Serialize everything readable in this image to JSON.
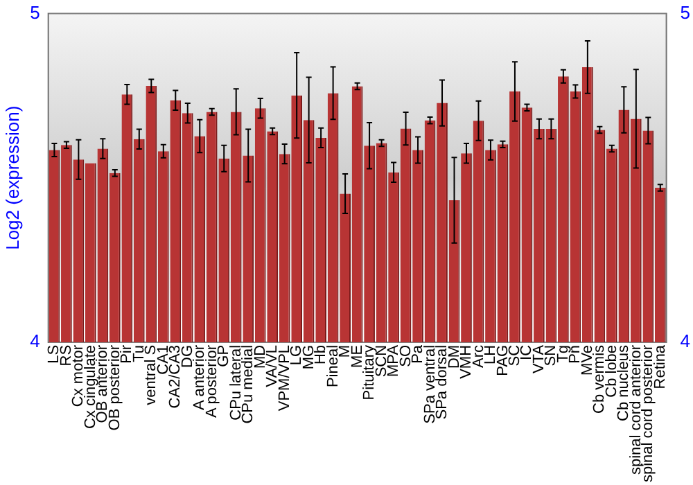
{
  "chart_data": {
    "type": "bar",
    "ylabel": "Log2 (expression)",
    "categories": [
      "LS",
      "RS",
      "Cx motor",
      "Cx cingulate",
      "OB anterior",
      "OB posterior",
      "Pir",
      "Tu",
      "ventral S",
      "CA1",
      "CA2/CA3",
      "DG",
      "A anterior",
      "A posterior",
      "GP",
      "CPu lateral",
      "CPu medial",
      "MD",
      "VA/VL",
      "VPM/VPL",
      "LG",
      "MG",
      "Hb",
      "Pineal",
      "M",
      "ME",
      "Pituitary",
      "SCN",
      "MPA",
      "SO",
      "Pa",
      "SPa ventral",
      "SPa dorsal",
      "DM",
      "VMH",
      "Arc",
      "LH",
      "PAG",
      "SC",
      "IC",
      "VTA",
      "SN",
      "Tg",
      "Pn",
      "MVe",
      "Cb vermis",
      "Cb lobe",
      "Cb nucleus",
      "spinal cord anterior",
      "spinal cord posterior",
      "Retina"
    ],
    "values": [
      4.585,
      4.6,
      4.556,
      4.545,
      4.589,
      4.515,
      4.754,
      4.618,
      4.78,
      4.581,
      4.736,
      4.697,
      4.627,
      4.701,
      4.559,
      4.701,
      4.568,
      4.712,
      4.642,
      4.573,
      4.751,
      4.676,
      4.622,
      4.758,
      4.452,
      4.779,
      4.598,
      4.606,
      4.517,
      4.65,
      4.585,
      4.675,
      4.728,
      4.432,
      4.575,
      4.674,
      4.585,
      4.602,
      4.763,
      4.714,
      4.649,
      4.649,
      4.809,
      4.763,
      4.837,
      4.646,
      4.589,
      4.707,
      4.68,
      4.644,
      4.47
    ],
    "errors": [
      0.02,
      0.01,
      0.06,
      null,
      0.03,
      0.01,
      0.03,
      0.03,
      0.02,
      0.02,
      0.03,
      0.03,
      0.05,
      0.01,
      0.04,
      0.07,
      0.08,
      0.03,
      0.01,
      0.03,
      0.13,
      0.13,
      0.03,
      0.08,
      0.06,
      0.01,
      0.07,
      0.01,
      0.03,
      0.05,
      0.04,
      0.01,
      0.07,
      0.13,
      0.03,
      0.06,
      0.03,
      0.01,
      0.09,
      0.01,
      0.03,
      0.03,
      0.02,
      0.02,
      0.08,
      0.01,
      0.01,
      0.07,
      0.15,
      0.04,
      0.01
    ],
    "color": "#b83434",
    "ylim": [
      4,
      5
    ],
    "yticks": [
      4,
      5
    ],
    "y2lim": [
      4,
      5
    ],
    "y2ticks": [
      4,
      5
    ],
    "grid": false,
    "legend": false
  }
}
